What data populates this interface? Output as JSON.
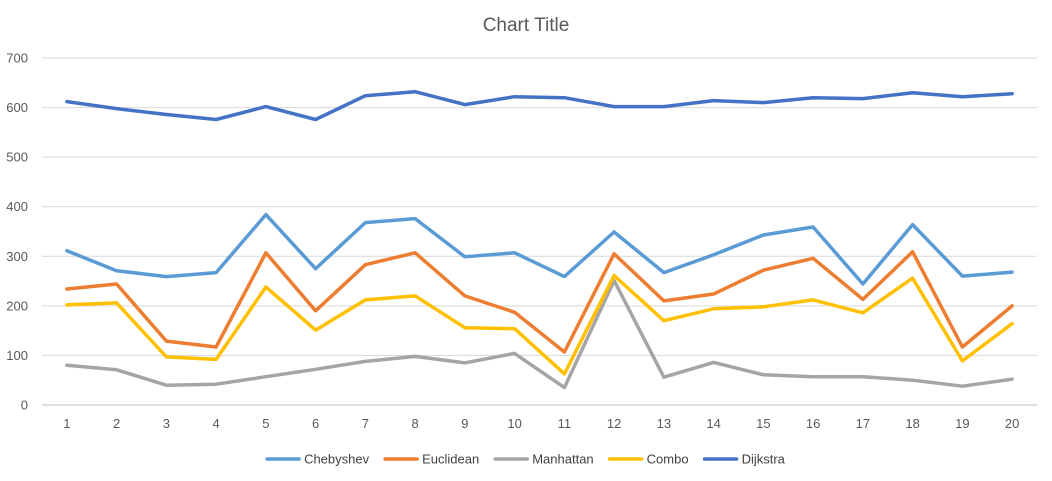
{
  "chart_data": {
    "type": "line",
    "title": "Chart Title",
    "xlabel": "",
    "ylabel": "",
    "ylim": [
      0,
      700
    ],
    "yticks": [
      0,
      100,
      200,
      300,
      400,
      500,
      600,
      700
    ],
    "grid": true,
    "legend": "bottom",
    "categories": [
      "1",
      "2",
      "3",
      "4",
      "5",
      "6",
      "7",
      "8",
      "9",
      "10",
      "11",
      "12",
      "13",
      "14",
      "15",
      "16",
      "17",
      "18",
      "19",
      "20"
    ],
    "series": [
      {
        "name": "Chebyshev",
        "color": "#5B9BD5",
        "values": [
          311,
          271,
          259,
          267,
          384,
          275,
          368,
          376,
          299,
          307,
          259,
          349,
          267,
          303,
          343,
          359,
          244,
          364,
          260,
          268
        ]
      },
      {
        "name": "Euclidean",
        "color": "#ED7D31",
        "values": [
          234,
          244,
          129,
          117,
          307,
          190,
          283,
          307,
          220,
          187,
          107,
          305,
          210,
          224,
          272,
          296,
          213,
          309,
          117,
          200
        ]
      },
      {
        "name": "Manhattan",
        "color": "#A5A5A5",
        "values": [
          80,
          71,
          40,
          42,
          57,
          72,
          88,
          98,
          85,
          104,
          35,
          251,
          56,
          86,
          61,
          57,
          57,
          50,
          38,
          52
        ]
      },
      {
        "name": "Combo",
        "color": "#FFC000",
        "values": [
          202,
          206,
          97,
          92,
          238,
          151,
          212,
          220,
          156,
          154,
          63,
          261,
          170,
          194,
          198,
          212,
          186,
          256,
          89,
          164
        ]
      },
      {
        "name": "Dijkstra",
        "color": "#4472C4",
        "values": [
          612,
          598,
          586,
          576,
          602,
          576,
          624,
          632,
          606,
          622,
          620,
          602,
          602,
          614,
          610,
          620,
          618,
          630,
          622,
          628
        ]
      }
    ]
  }
}
